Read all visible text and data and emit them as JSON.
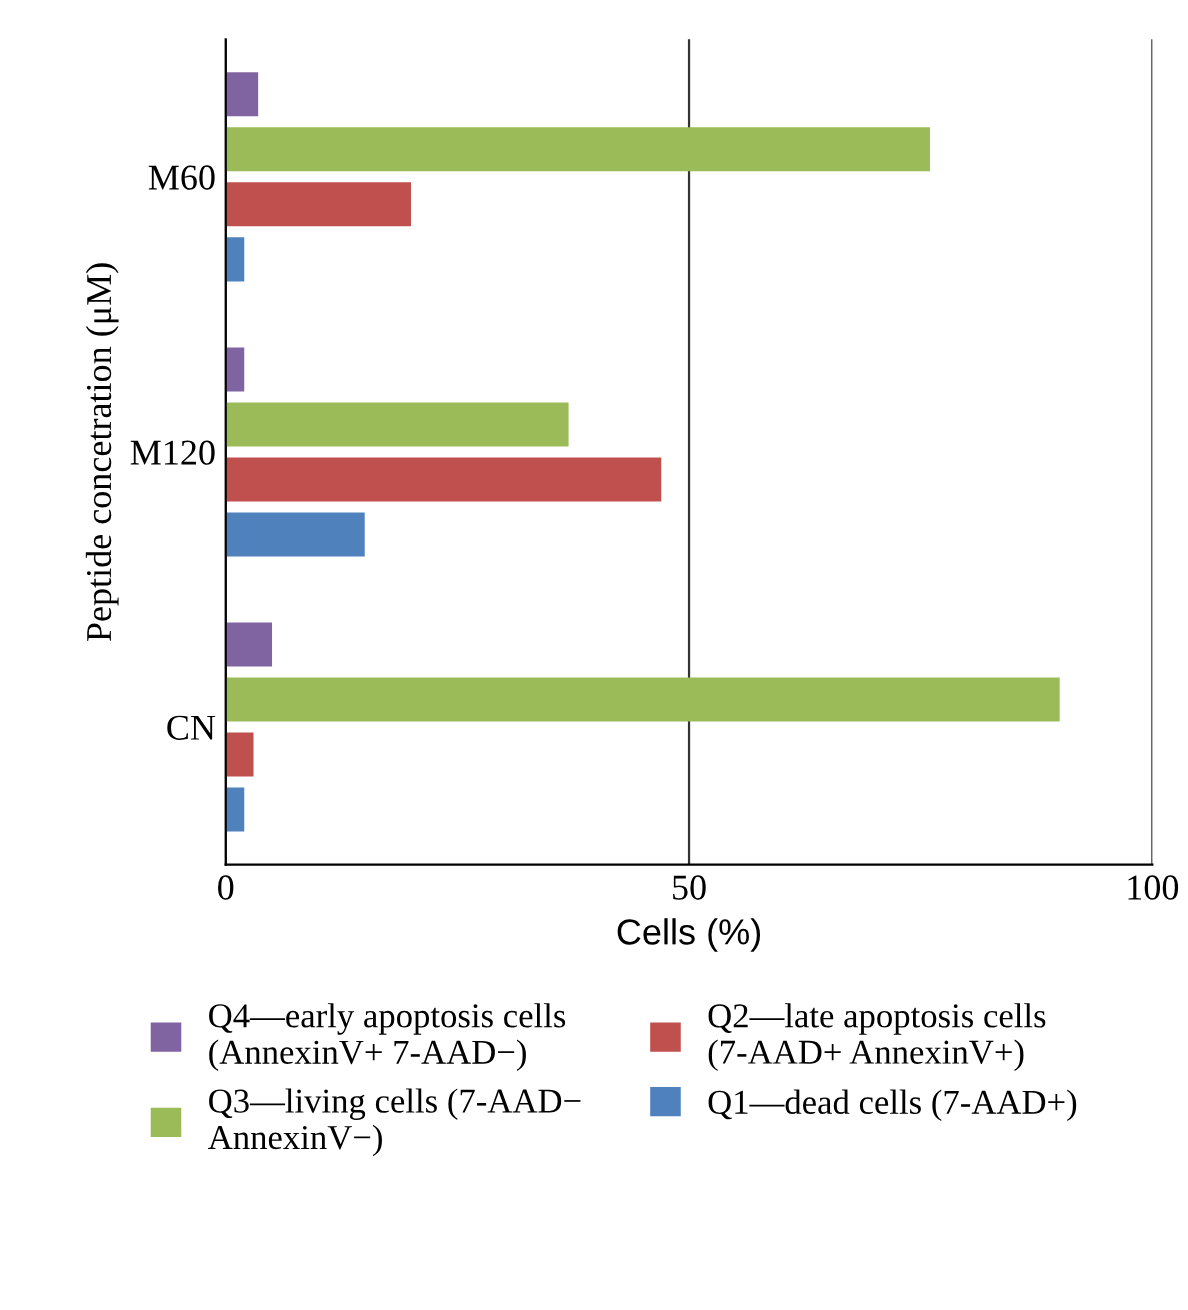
{
  "chart_data": {
    "type": "bar",
    "orientation": "horizontal",
    "xlabel": "Cells (%)",
    "ylabel": "Peptide concetration (μM)",
    "categories": [
      "M60",
      "M120",
      "CN"
    ],
    "series": [
      {
        "name": "Q4—early apoptosis cells\n(AnnexinV+ 7-AAD−)",
        "color": "#8064a2",
        "values": [
          3.5,
          2,
          5
        ]
      },
      {
        "name": "Q3—living cells (7-AAD−\nAnnexinV−)",
        "color": "#9bbb59",
        "values": [
          76,
          37,
          90
        ]
      },
      {
        "name": "Q2—late apoptosis cells\n(7-AAD+ AnnexinV+)",
        "color": "#c0504d",
        "values": [
          20,
          47,
          3
        ]
      },
      {
        "name": "Q1—dead cells (7-AAD+)",
        "color": "#4f81bd",
        "values": [
          2,
          15,
          2
        ]
      }
    ],
    "xlim": [
      0,
      100
    ],
    "xticks": [
      0,
      50,
      100
    ],
    "grid": "x",
    "legend": "bottom"
  }
}
